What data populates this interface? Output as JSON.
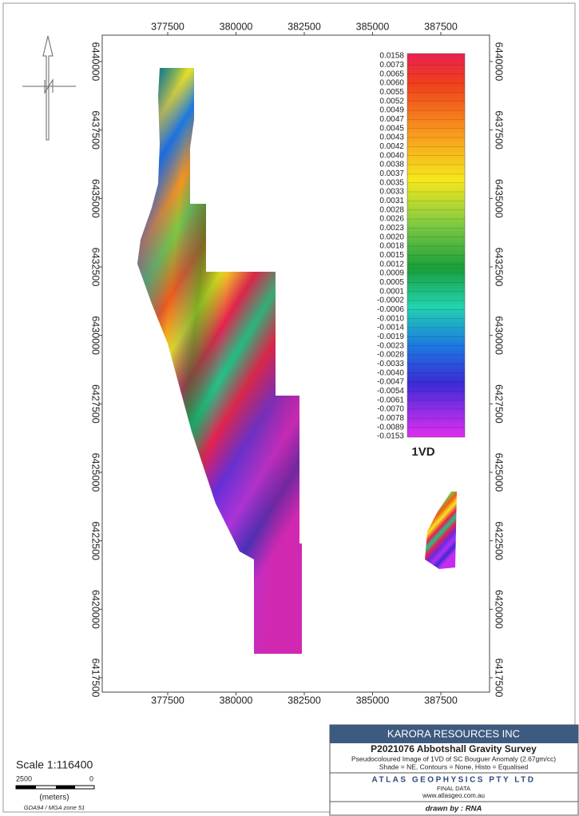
{
  "map": {
    "xlim": [
      375102,
      389284
    ],
    "ylim": [
      6416975,
      6440963
    ],
    "xticks": [
      377500,
      380000,
      382500,
      385000,
      387500
    ],
    "yticks": [
      6440000,
      6437500,
      6435000,
      6432500,
      6430000,
      6427500,
      6425000,
      6422500,
      6420000,
      6417500
    ]
  },
  "legend": {
    "labels": [
      "0.0158",
      "0.0073",
      "0.0065",
      "0.0060",
      "0.0055",
      "0.0052",
      "0.0049",
      "0.0047",
      "0.0045",
      "0.0043",
      "0.0042",
      "0.0040",
      "0.0038",
      "0.0037",
      "0.0035",
      "0.0033",
      "0.0031",
      "0.0028",
      "0.0026",
      "0.0023",
      "0.0020",
      "0.0018",
      "0.0015",
      "0.0012",
      "0.0009",
      "0.0005",
      "0.0001",
      "-0.0002",
      "-0.0006",
      "-0.0010",
      "-0.0014",
      "-0.0019",
      "-0.0023",
      "-0.0028",
      "-0.0033",
      "-0.0040",
      "-0.0047",
      "-0.0054",
      "-0.0061",
      "-0.0070",
      "-0.0078",
      "-0.0089",
      "-0.0153"
    ],
    "title": "1VD"
  },
  "scale": {
    "text": "Scale 1:116400",
    "left": "2500",
    "right": "0",
    "unit": "(meters)",
    "datum": "GDA94 / MGA zone 51"
  },
  "title_block": {
    "company": "KARORA RESOURCES INC",
    "project": "P2021076 Abbotshall Gravity Survey",
    "description": "Pseudocoloured Image of 1VD of SC Bouguer Anomaly (2.67gm/cc)",
    "settings": "Shade = NE, Contours = None, Histo = Equalised",
    "contractor": "ATLAS GEOPHYSICS PTY LTD",
    "status": "FINAL DATA",
    "website": "www.atlasgeo.com.au",
    "drawn_by": "drawn by : RNA"
  }
}
